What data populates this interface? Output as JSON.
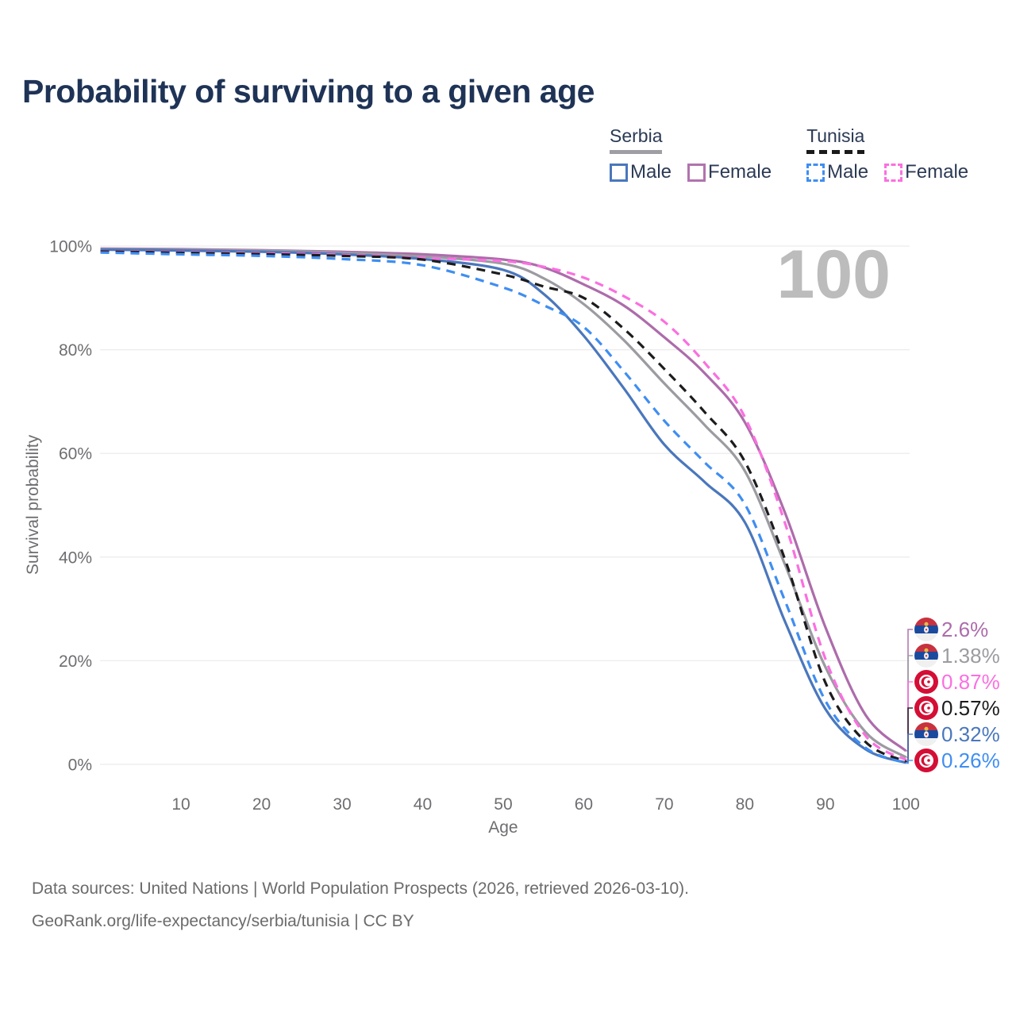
{
  "title": "Probability of surviving to a given age",
  "watermark": "100",
  "legend": {
    "groups": [
      {
        "country": "Serbia",
        "style": "solid",
        "underline_color": "#9e9ea3",
        "items": [
          {
            "label": "Male",
            "color": "#4a77bd",
            "dashed": false
          },
          {
            "label": "Female",
            "color": "#b073ad",
            "dashed": false
          }
        ]
      },
      {
        "country": "Tunisia",
        "style": "dashed",
        "underline_color": "#1a1a1a",
        "items": [
          {
            "label": "Male",
            "color": "#3f8ef2",
            "dashed": true
          },
          {
            "label": "Female",
            "color": "#fb6fe0",
            "dashed": true
          }
        ]
      }
    ]
  },
  "chart_data": {
    "type": "line",
    "title": "Probability of surviving to a given age",
    "xlabel": "Age",
    "ylabel": "Survival probability",
    "xlim": [
      0,
      100
    ],
    "ylim": [
      0,
      100
    ],
    "grid": "horizontal",
    "x_ticks": [
      10,
      20,
      30,
      40,
      50,
      60,
      70,
      80,
      90,
      100
    ],
    "y_grid_values": [
      0,
      20,
      40,
      60,
      80,
      100
    ],
    "y_tick_labels": [
      "0%",
      "20%",
      "40%",
      "60%",
      "80%",
      "100%"
    ],
    "watermark": "100",
    "x": [
      0,
      10,
      20,
      30,
      40,
      50,
      55,
      60,
      65,
      70,
      75,
      80,
      85,
      90,
      95,
      100
    ],
    "series": [
      {
        "name": "Serbia Female",
        "country": "serbia",
        "sex": "female",
        "color": "#ad6cab",
        "dashed": false,
        "end_label": "2.6%",
        "values": [
          99.5,
          99.4,
          99.2,
          98.9,
          98.4,
          97.4,
          95.9,
          92.6,
          88.5,
          82.4,
          75.5,
          66.0,
          48.5,
          26.5,
          9.5,
          2.6
        ]
      },
      {
        "name": "Serbia (all)",
        "country": "serbia",
        "sex": "all",
        "color": "#9b9ba1",
        "dashed": false,
        "end_label": "1.38%",
        "values": [
          99.4,
          99.3,
          99.1,
          98.7,
          98.0,
          96.6,
          93.8,
          88.8,
          81.8,
          73.5,
          65.5,
          56.6,
          38.5,
          18.8,
          6.2,
          1.38
        ]
      },
      {
        "name": "Tunisia Female",
        "country": "tunisia",
        "sex": "female",
        "color": "#fb6fe0",
        "dashed": true,
        "end_label": "0.87%",
        "values": [
          99.0,
          98.8,
          98.6,
          98.3,
          97.7,
          97.1,
          96.0,
          93.9,
          90.3,
          85.4,
          77.5,
          67.0,
          46.5,
          20.4,
          5.5,
          0.87
        ]
      },
      {
        "name": "Tunisia (all)",
        "country": "tunisia",
        "sex": "all",
        "color": "#1c1c1e",
        "dashed": true,
        "end_label": "0.57%",
        "values": [
          98.95,
          98.7,
          98.45,
          98.1,
          97.4,
          94.5,
          92.2,
          90.0,
          84.0,
          76.3,
          68.0,
          58.4,
          39.5,
          15.8,
          4.3,
          0.57
        ]
      },
      {
        "name": "Serbia Male",
        "country": "serbia",
        "sex": "male",
        "color": "#4a77bd",
        "dashed": false,
        "end_label": "0.32%",
        "values": [
          99.3,
          99.15,
          98.9,
          98.4,
          97.5,
          95.4,
          90.8,
          82.7,
          72.5,
          61.7,
          54.5,
          46.7,
          27.5,
          10.7,
          2.9,
          0.32
        ]
      },
      {
        "name": "Tunisia Male",
        "country": "tunisia",
        "sex": "male",
        "color": "#3f8ef2",
        "dashed": true,
        "end_label": "0.26%",
        "values": [
          98.75,
          98.4,
          98.1,
          97.5,
          96.3,
          92.0,
          88.6,
          84.4,
          75.8,
          66.3,
          58.3,
          50.2,
          31.5,
          12.3,
          3.2,
          0.26
        ]
      }
    ]
  },
  "footer": {
    "line1": "Data sources: United Nations | World Population Prospects (2026, retrieved 2026-03-10).",
    "line2": "GeoRank.org/life-expectancy/serbia/tunisia | CC BY"
  }
}
